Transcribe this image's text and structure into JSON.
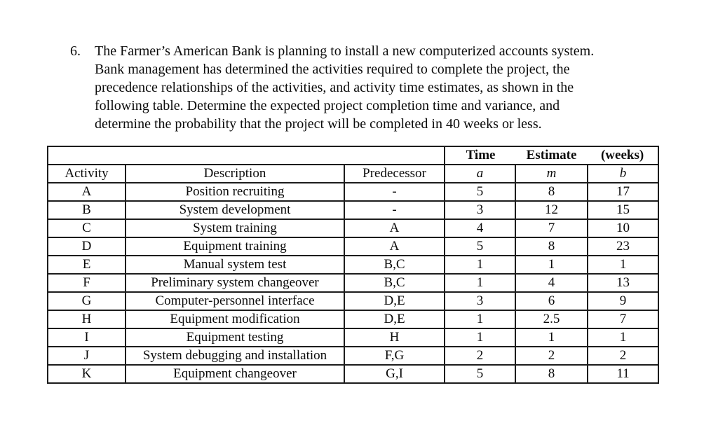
{
  "document": {
    "problem_number": "6.",
    "paragraph_lines": [
      "The Farmer’s American Bank is planning to install a new computerized accounts system.",
      "Bank management has determined the activities required to complete the project, the",
      "precedence relationships of the activities, and activity time estimates, as shown in the",
      "following table. Determine the expected project completion time and variance, and",
      "determine the probability that the project will be completed in 40 weeks or less."
    ]
  },
  "table": {
    "header_group": {
      "time": "Time",
      "estimate": "Estimate",
      "weeks": "(weeks)"
    },
    "columns": [
      "Activity",
      "Description",
      "Predecessor",
      "a",
      "m",
      "b"
    ],
    "rows": [
      {
        "activity": "A",
        "description": "Position recruiting",
        "predecessor": "-",
        "a": "5",
        "m": "8",
        "b": "17"
      },
      {
        "activity": "B",
        "description": "System development",
        "predecessor": "-",
        "a": "3",
        "m": "12",
        "b": "15"
      },
      {
        "activity": "C",
        "description": "System training",
        "predecessor": "A",
        "a": "4",
        "m": "7",
        "b": "10"
      },
      {
        "activity": "D",
        "description": "Equipment training",
        "predecessor": "A",
        "a": "5",
        "m": "8",
        "b": "23"
      },
      {
        "activity": "E",
        "description": "Manual system test",
        "predecessor": "B,C",
        "a": "1",
        "m": "1",
        "b": "1"
      },
      {
        "activity": "F",
        "description": "Preliminary system changeover",
        "predecessor": "B,C",
        "a": "1",
        "m": "4",
        "b": "13"
      },
      {
        "activity": "G",
        "description": "Computer-personnel interface",
        "predecessor": "D,E",
        "a": "3",
        "m": "6",
        "b": "9"
      },
      {
        "activity": "H",
        "description": "Equipment modification",
        "predecessor": "D,E",
        "a": "1",
        "m": "2.5",
        "b": "7"
      },
      {
        "activity": "I",
        "description": "Equipment testing",
        "predecessor": "H",
        "a": "1",
        "m": "1",
        "b": "1"
      },
      {
        "activity": "J",
        "description": "System debugging and installation",
        "predecessor": "F,G",
        "a": "2",
        "m": "2",
        "b": "2"
      },
      {
        "activity": "K",
        "description": "Equipment changeover",
        "predecessor": "G,I",
        "a": "5",
        "m": "8",
        "b": "11"
      }
    ]
  },
  "colors": {
    "background": "#ffffff",
    "text": "#0b0b0b",
    "border": "#1c1c1c"
  }
}
